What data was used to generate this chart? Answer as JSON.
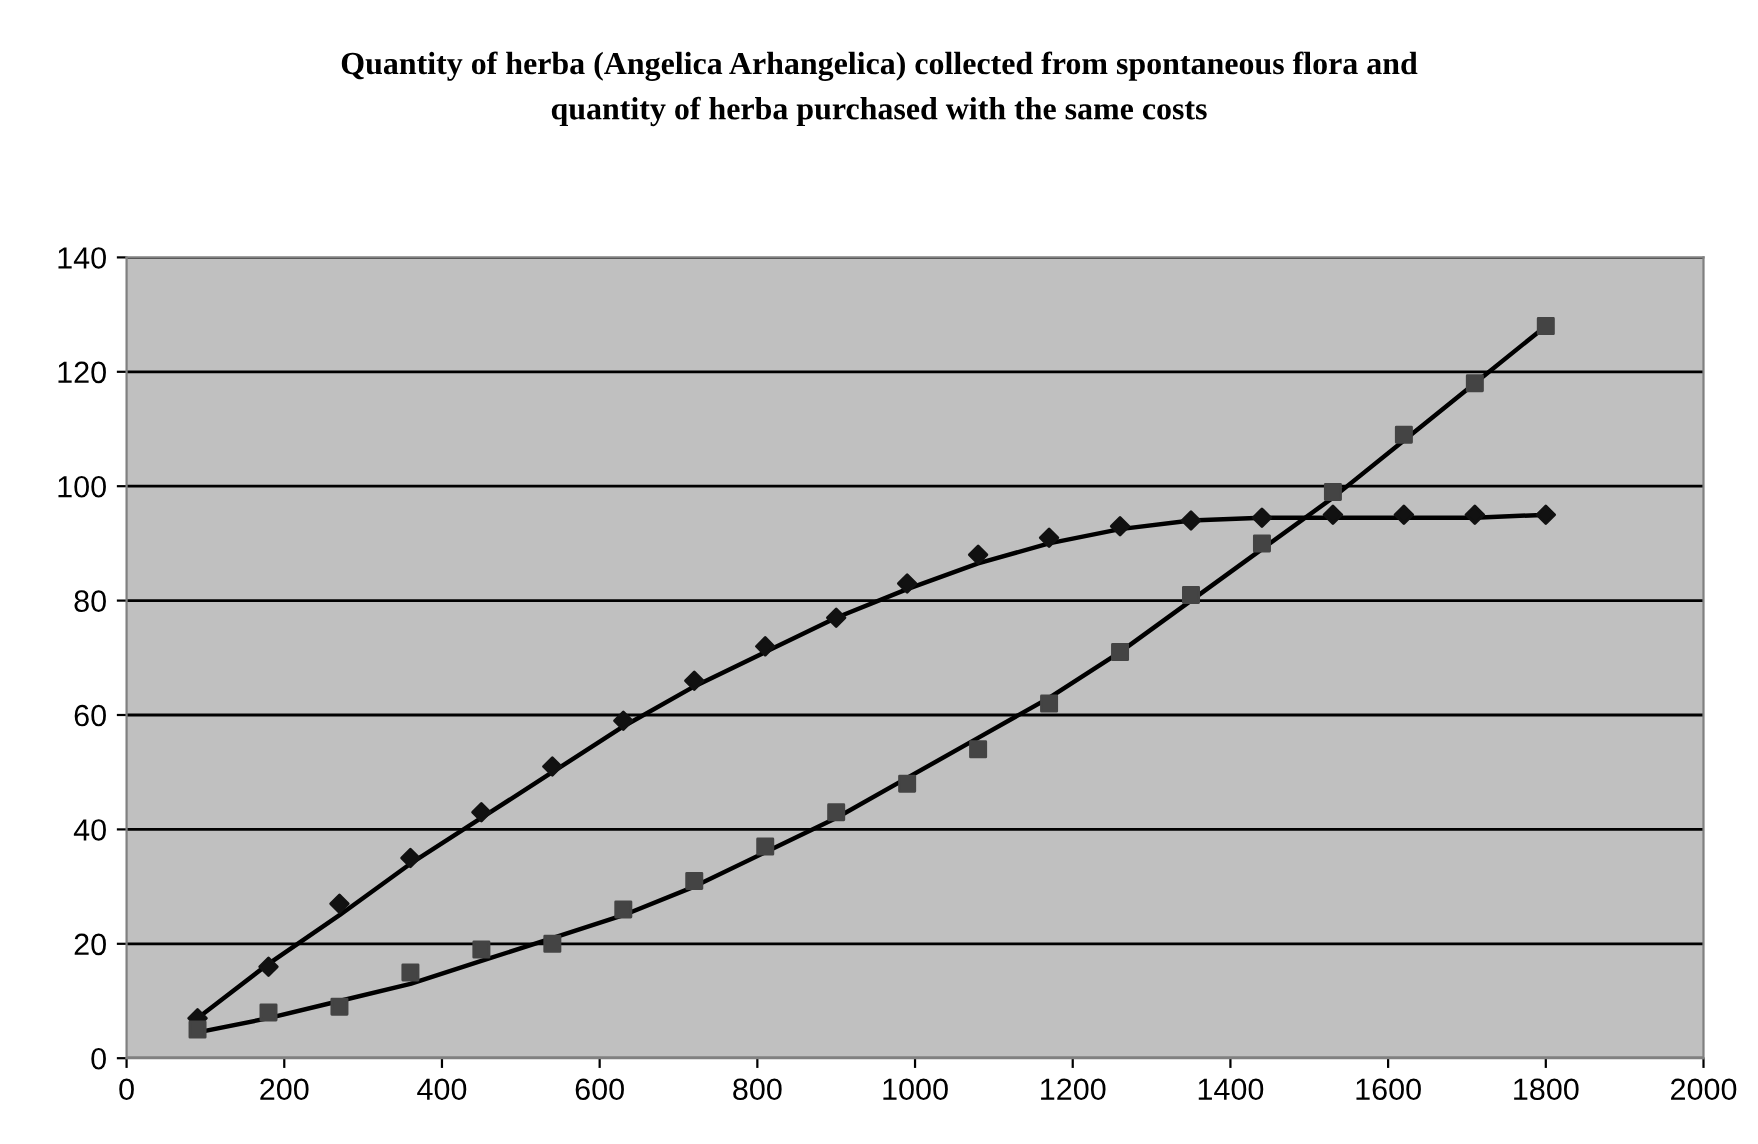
{
  "chart_data": {
    "type": "scatter",
    "title": "Quantity of herba (Angelica Arhangelica) collected from spontaneous flora and\nquantity of herba purchased with the same costs",
    "x": [
      90,
      180,
      270,
      360,
      450,
      540,
      630,
      720,
      810,
      900,
      990,
      1080,
      1170,
      1260,
      1350,
      1440,
      1530,
      1620,
      1710,
      1800
    ],
    "series": [
      {
        "marker": "diamond",
        "color": "#111111",
        "values": [
          7,
          16,
          27,
          35,
          43,
          51,
          59,
          66,
          72,
          77,
          83,
          88,
          91,
          93,
          94,
          94.5,
          95,
          95,
          95,
          95
        ]
      },
      {
        "marker": "square",
        "color": "#444444",
        "values": [
          5,
          8,
          9,
          15,
          19,
          20,
          26,
          31,
          37,
          43,
          48,
          54,
          62,
          71,
          81,
          90,
          99,
          109,
          118,
          128
        ]
      },
      {
        "type": "line",
        "marker": "none",
        "color": "#000000",
        "x": [
          90,
          180,
          270,
          360,
          450,
          540,
          630,
          720,
          810,
          900,
          990,
          1080,
          1170,
          1260,
          1350,
          1440,
          1530,
          1620,
          1710,
          1800
        ],
        "values": [
          7,
          16.5,
          25,
          34,
          42,
          50,
          58,
          65,
          71,
          77,
          82,
          86.5,
          90,
          92.5,
          94,
          94.5,
          94.5,
          94.5,
          94.5,
          95
        ]
      },
      {
        "type": "line",
        "marker": "none",
        "color": "#000000",
        "x": [
          90,
          180,
          270,
          360,
          450,
          540,
          630,
          720,
          810,
          900,
          990,
          1080,
          1170,
          1260,
          1350,
          1440,
          1530,
          1620,
          1710,
          1800
        ],
        "values": [
          4.5,
          7,
          10,
          13,
          17,
          21,
          25,
          30,
          36,
          42,
          49,
          56,
          63,
          71,
          80,
          89,
          98,
          108,
          118,
          128
        ]
      }
    ],
    "xlim": [
      0,
      2000
    ],
    "xticks": [
      0,
      200,
      400,
      600,
      800,
      1000,
      1200,
      1400,
      1600,
      1800,
      2000
    ],
    "ylim": [
      0,
      140
    ],
    "yticks": [
      0,
      20,
      40,
      60,
      80,
      100,
      120,
      140
    ],
    "grid": "y"
  }
}
